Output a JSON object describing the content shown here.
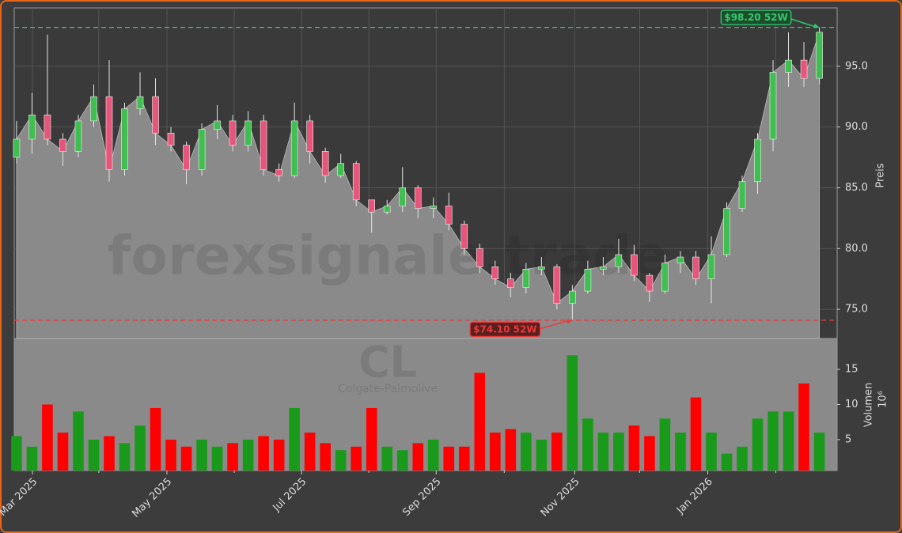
{
  "chart_data": [
    {
      "type": "candlestick",
      "x": [
        0,
        1,
        2,
        3,
        4,
        5,
        6,
        7,
        8,
        9,
        10,
        11,
        12,
        13,
        14,
        15,
        16,
        17,
        18,
        19,
        20,
        21,
        22,
        23,
        24,
        25,
        26,
        27,
        28,
        29,
        30,
        31,
        32,
        33,
        34,
        35,
        36,
        37,
        38,
        39,
        40,
        41,
        42,
        43,
        44,
        45,
        46,
        47,
        48,
        49,
        50,
        51,
        52
      ],
      "open": [
        87.5,
        89,
        91,
        89,
        88,
        90.5,
        92.5,
        86.5,
        91.5,
        92.5,
        89.5,
        88.5,
        86.5,
        89.8,
        90.5,
        88.5,
        90.5,
        86.5,
        86,
        90.5,
        88,
        86,
        87,
        84,
        83,
        83.5,
        85,
        83.3,
        83.5,
        82,
        80,
        78.5,
        77.5,
        76.8,
        78.3,
        78.5,
        75.5,
        76.5,
        78.3,
        78.5,
        79.5,
        77.8,
        76.5,
        78.8,
        79.3,
        77.5,
        79.5,
        83.3,
        85.5,
        89,
        94.5,
        95.5,
        94
      ],
      "high": [
        90.5,
        92.8,
        97.6,
        89.5,
        91,
        93.5,
        95.5,
        92,
        94.5,
        94,
        90,
        88.8,
        90.3,
        91.8,
        91,
        91.3,
        91,
        87,
        92,
        91,
        88.3,
        87.8,
        87.2,
        84,
        84,
        86.7,
        85.2,
        84.2,
        84.6,
        82.3,
        80.4,
        79,
        78,
        78.8,
        79.3,
        78.7,
        77,
        79,
        79.3,
        80.8,
        80.3,
        78,
        79.5,
        79.8,
        79.8,
        81,
        83.8,
        86,
        89.5,
        95.5,
        97.8,
        97,
        98.2
      ],
      "low": [
        87,
        87.8,
        88.5,
        86.8,
        87.5,
        90,
        85.5,
        86,
        91,
        88.5,
        88,
        85.3,
        86,
        89,
        88,
        88,
        86,
        85.5,
        85.8,
        87,
        85.4,
        85.8,
        83.5,
        81.3,
        82.8,
        83,
        82.5,
        82.5,
        81.5,
        79.5,
        78,
        77,
        76,
        76.3,
        77.8,
        75,
        74.1,
        76.3,
        77.8,
        78,
        77.3,
        75.6,
        76.3,
        78,
        77,
        75.5,
        79.3,
        83,
        84.5,
        88,
        93.3,
        93.3,
        93.5
      ],
      "close": [
        89,
        91,
        89,
        88,
        90.5,
        92.5,
        86.5,
        91.5,
        92.5,
        89.5,
        88.5,
        86.5,
        89.8,
        90.5,
        88.5,
        90.5,
        86.5,
        86,
        90.5,
        88,
        86,
        87,
        84,
        83,
        83.5,
        85,
        83.3,
        83.5,
        82,
        80,
        78.5,
        77.5,
        76.8,
        78.3,
        78.5,
        75.5,
        76.5,
        78.3,
        78.5,
        79.5,
        77.8,
        76.5,
        78.8,
        79.3,
        77.5,
        79.5,
        83.3,
        85.5,
        89,
        94.5,
        95.5,
        94,
        97.8
      ],
      "up_color": "#3fbf4f",
      "down_color": "#e8557a",
      "area_color": "#8a8a8a",
      "xlim": [
        -0.15,
        53.15
      ],
      "ylim": [
        72.6,
        99.8
      ],
      "yticks": [
        {
          "value": 75,
          "label": "75.0"
        },
        {
          "value": 80,
          "label": "80.0"
        },
        {
          "value": 85,
          "label": "85.0"
        },
        {
          "value": 90,
          "label": "90.0"
        },
        {
          "value": 95,
          "label": "95.0"
        }
      ],
      "ylabel": "Preis",
      "grid": true,
      "watermark": "forexsignale.trade",
      "reference_lines": [
        {
          "value": 98.2,
          "label": "$98.20 52W",
          "color": "#2ecc71"
        },
        {
          "value": 74.1,
          "label": "$74.10 52W",
          "color": "#e83a3a"
        }
      ]
    },
    {
      "type": "bar",
      "values": [
        5.5,
        4,
        10,
        6,
        9,
        5,
        5.5,
        4.5,
        7,
        9.5,
        5,
        4,
        5,
        4,
        4.5,
        5,
        5.5,
        5,
        9.5,
        6,
        4.5,
        3.5,
        4,
        9.5,
        4,
        3.5,
        4.5,
        5,
        4,
        4,
        14.5,
        6,
        6.5,
        6,
        5,
        6,
        17,
        8,
        6,
        6,
        7,
        5.5,
        8,
        6,
        11,
        6,
        3,
        4,
        8,
        9,
        9,
        13,
        6
      ],
      "up_color": "#1a9a1a",
      "down_color": "#ff0000",
      "xlim": [
        -0.15,
        53.15
      ],
      "ylim": [
        0.6,
        19.4
      ],
      "yticks": [
        5,
        10,
        15
      ],
      "ylabel": "Volumen",
      "multiplier": "10⁶",
      "watermark": "CL",
      "watermark_subtitle": "Colgate-Palmolive",
      "xticks": [
        {
          "value": 1.03,
          "label": "Mar 2025"
        },
        {
          "value": 9.74,
          "label": "May 2025"
        },
        {
          "value": 18.46,
          "label": "Jul 2025"
        },
        {
          "value": 27.18,
          "label": "Sep 2025"
        },
        {
          "value": 36.15,
          "label": "Nov 2025"
        },
        {
          "value": 44.77,
          "label": "Jan 2026"
        }
      ],
      "xminorticks": [
        5.33,
        14.1,
        22.82,
        31.59,
        40.36,
        49.18
      ]
    }
  ]
}
